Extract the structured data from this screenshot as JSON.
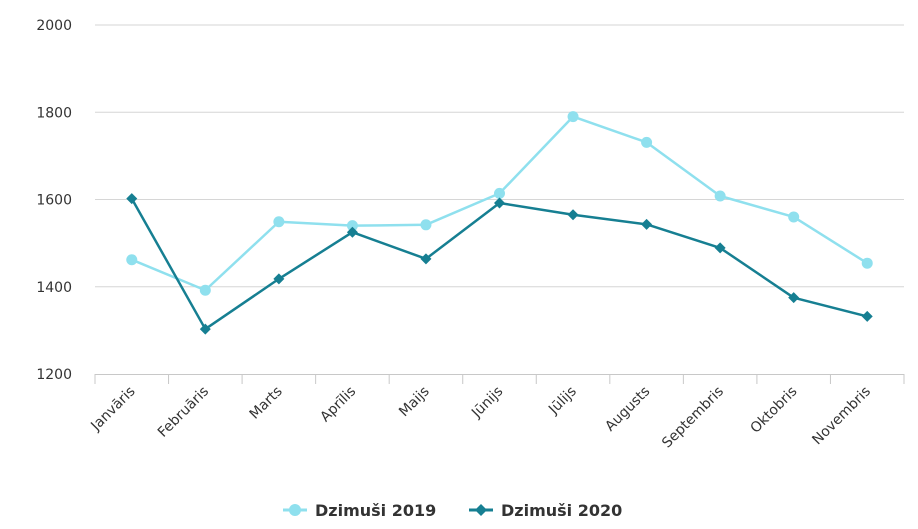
{
  "chart_data": {
    "type": "line",
    "title": "",
    "xlabel": "",
    "ylabel": "",
    "categories": [
      "Janvāris",
      "Februāris",
      "Marts",
      "Aprīlis",
      "Maijs",
      "Jūnijs",
      "Jūlijs",
      "Augusts",
      "Septembris",
      "Oktobris",
      "Novembris"
    ],
    "ylim": [
      1200,
      2000
    ],
    "yticks": [
      "1200",
      "1400",
      "1600",
      "1800",
      "2000"
    ],
    "grid": true,
    "legend": "bottom",
    "series": [
      {
        "name": "Dzimuši 2019",
        "color": "#8fe0ee",
        "marker": "circle",
        "values": [
          1462,
          1392,
          1549,
          1540,
          1542,
          1614,
          1790,
          1731,
          1608,
          1560,
          1454
        ]
      },
      {
        "name": "Dzimuši 2020",
        "color": "#167f92",
        "marker": "diamond",
        "values": [
          1602,
          1303,
          1418,
          1525,
          1464,
          1592,
          1565,
          1543,
          1489,
          1375,
          1332
        ]
      }
    ]
  }
}
